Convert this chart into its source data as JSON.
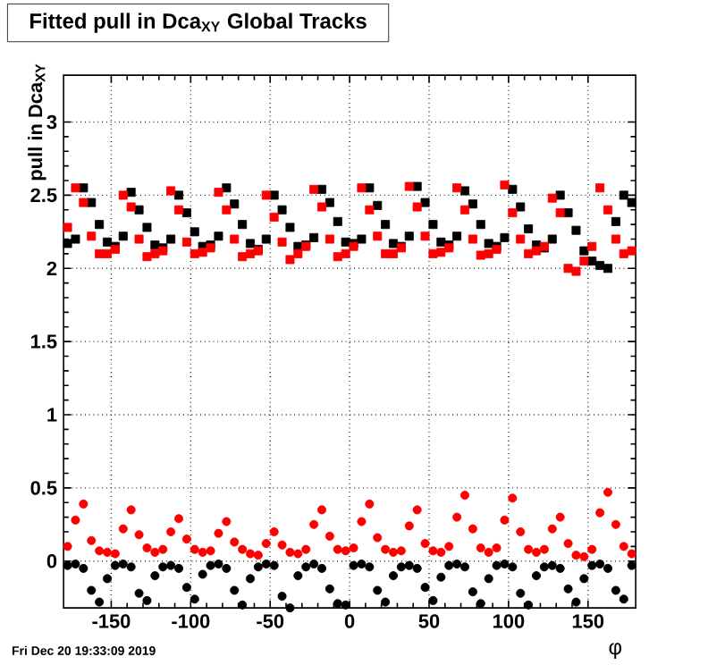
{
  "chart_data": {
    "type": "scatter",
    "title": "Fitted pull in Dca$_{XY}$ Global Tracks",
    "xlabel": "φ",
    "ylabel": "pull in Dca$_{XY}$",
    "annotations": [
      "Fri Dec 20 19:33:09 2019"
    ],
    "x": [
      -177.5,
      -172.5,
      -167.5,
      -162.5,
      -157.5,
      -152.5,
      -147.5,
      -142.5,
      -137.5,
      -132.5,
      -127.5,
      -122.5,
      -117.5,
      -112.5,
      -107.5,
      -102.5,
      -97.5,
      -92.5,
      -87.5,
      -82.5,
      -77.5,
      -72.5,
      -67.5,
      -62.5,
      -57.5,
      -52.5,
      -47.5,
      -42.5,
      -37.5,
      -32.5,
      -27.5,
      -22.5,
      -17.5,
      -12.5,
      -7.5,
      -2.5,
      2.5,
      7.5,
      12.5,
      17.5,
      22.5,
      27.5,
      32.5,
      37.5,
      42.5,
      47.5,
      52.5,
      57.5,
      62.5,
      67.5,
      72.5,
      77.5,
      82.5,
      87.5,
      92.5,
      97.5,
      102.5,
      107.5,
      112.5,
      117.5,
      122.5,
      127.5,
      132.5,
      137.5,
      142.5,
      147.5,
      152.5,
      157.5,
      162.5,
      167.5,
      172.5,
      177.5
    ],
    "series": [
      {
        "color": "#000000",
        "marker": "square",
        "values": [
          2.17,
          2.2,
          2.55,
          2.45,
          2.3,
          2.18,
          2.15,
          2.22,
          2.52,
          2.4,
          2.28,
          2.16,
          2.14,
          2.2,
          2.5,
          2.38,
          2.25,
          2.15,
          2.16,
          2.22,
          2.55,
          2.44,
          2.3,
          2.17,
          2.13,
          2.2,
          2.5,
          2.4,
          2.28,
          2.15,
          2.16,
          2.21,
          2.54,
          2.45,
          2.32,
          2.18,
          2.17,
          2.2,
          2.55,
          2.43,
          2.3,
          2.17,
          2.15,
          2.22,
          2.56,
          2.45,
          2.3,
          2.18,
          2.16,
          2.22,
          2.53,
          2.44,
          2.3,
          2.17,
          2.15,
          2.21,
          2.54,
          2.42,
          2.27,
          2.16,
          2.14,
          2.2,
          2.5,
          2.38,
          2.26,
          2.12,
          2.05,
          2.02,
          2.0,
          2.32,
          2.5,
          2.45
        ]
      },
      {
        "color": "#ff0000",
        "marker": "square",
        "values": [
          2.28,
          2.55,
          2.45,
          2.22,
          2.1,
          2.1,
          2.13,
          2.5,
          2.42,
          2.2,
          2.08,
          2.1,
          2.12,
          2.53,
          2.4,
          2.18,
          2.1,
          2.11,
          2.14,
          2.52,
          2.4,
          2.2,
          2.08,
          2.1,
          2.12,
          2.5,
          2.35,
          2.18,
          2.06,
          2.1,
          2.15,
          2.54,
          2.42,
          2.2,
          2.08,
          2.1,
          2.15,
          2.55,
          2.4,
          2.22,
          2.1,
          2.1,
          2.14,
          2.56,
          2.42,
          2.22,
          2.1,
          2.11,
          2.14,
          2.55,
          2.4,
          2.2,
          2.09,
          2.1,
          2.13,
          2.57,
          2.38,
          2.2,
          2.1,
          2.12,
          2.15,
          2.48,
          2.38,
          2.0,
          1.98,
          2.05,
          2.15,
          2.55,
          2.4,
          2.2,
          2.1,
          2.12
        ]
      },
      {
        "color": "#ff0000",
        "marker": "circle",
        "values": [
          0.1,
          0.28,
          0.39,
          0.14,
          0.07,
          0.06,
          0.05,
          0.22,
          0.35,
          0.18,
          0.09,
          0.06,
          0.08,
          0.2,
          0.29,
          0.15,
          0.08,
          0.06,
          0.07,
          0.19,
          0.27,
          0.13,
          0.08,
          0.05,
          0.04,
          0.12,
          0.2,
          0.11,
          0.06,
          0.05,
          0.08,
          0.25,
          0.35,
          0.17,
          0.08,
          0.07,
          0.09,
          0.27,
          0.39,
          0.16,
          0.08,
          0.06,
          0.07,
          0.24,
          0.35,
          0.12,
          0.07,
          0.06,
          0.1,
          0.3,
          0.45,
          0.22,
          0.09,
          0.06,
          0.09,
          0.28,
          0.43,
          0.2,
          0.08,
          0.06,
          0.08,
          0.22,
          0.3,
          0.12,
          0.04,
          0.03,
          0.08,
          0.33,
          0.47,
          0.25,
          0.1,
          0.05
        ]
      },
      {
        "color": "#000000",
        "marker": "circle",
        "values": [
          -0.03,
          -0.02,
          -0.05,
          -0.2,
          -0.28,
          -0.12,
          -0.03,
          -0.02,
          -0.04,
          -0.22,
          -0.27,
          -0.1,
          -0.04,
          -0.03,
          -0.05,
          -0.18,
          -0.26,
          -0.09,
          -0.03,
          -0.02,
          -0.05,
          -0.2,
          -0.3,
          -0.12,
          -0.04,
          -0.02,
          -0.03,
          -0.24,
          -0.32,
          -0.1,
          -0.04,
          -0.02,
          -0.05,
          -0.19,
          -0.29,
          -0.3,
          -0.03,
          -0.02,
          -0.04,
          -0.2,
          -0.28,
          -0.1,
          -0.04,
          -0.03,
          -0.05,
          -0.18,
          -0.27,
          -0.11,
          -0.03,
          -0.02,
          -0.04,
          -0.21,
          -0.29,
          -0.12,
          -0.03,
          -0.02,
          -0.04,
          -0.22,
          -0.3,
          -0.1,
          -0.04,
          -0.03,
          -0.05,
          -0.19,
          -0.28,
          -0.12,
          -0.03,
          -0.02,
          -0.05,
          -0.2,
          -0.26,
          -0.03
        ]
      }
    ],
    "xlim": [
      -180,
      180
    ],
    "ylim": [
      -0.32,
      3.32
    ],
    "xticks": [
      -150,
      -100,
      -50,
      0,
      50,
      100,
      150
    ],
    "yticks": [
      0,
      0.5,
      1,
      1.5,
      2,
      2.5,
      3
    ],
    "grid": true
  }
}
